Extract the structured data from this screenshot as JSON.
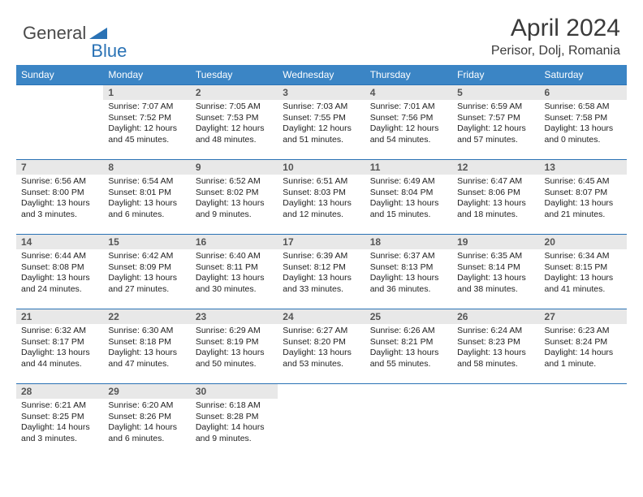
{
  "logo": {
    "text1": "General",
    "text2": "Blue"
  },
  "title": "April 2024",
  "location": "Perisor, Dolj, Romania",
  "colors": {
    "header_bg": "#3b85c5",
    "border": "#2a72b5",
    "day_num_bg": "#e8e8e8",
    "text": "#222222",
    "logo_gray": "#4a4a4a",
    "logo_blue": "#2a72b5"
  },
  "day_headers": [
    "Sunday",
    "Monday",
    "Tuesday",
    "Wednesday",
    "Thursday",
    "Friday",
    "Saturday"
  ],
  "weeks": [
    [
      {
        "num": "",
        "sunrise": "",
        "sunset": "",
        "daylight": ""
      },
      {
        "num": "1",
        "sunrise": "Sunrise: 7:07 AM",
        "sunset": "Sunset: 7:52 PM",
        "daylight": "Daylight: 12 hours and 45 minutes."
      },
      {
        "num": "2",
        "sunrise": "Sunrise: 7:05 AM",
        "sunset": "Sunset: 7:53 PM",
        "daylight": "Daylight: 12 hours and 48 minutes."
      },
      {
        "num": "3",
        "sunrise": "Sunrise: 7:03 AM",
        "sunset": "Sunset: 7:55 PM",
        "daylight": "Daylight: 12 hours and 51 minutes."
      },
      {
        "num": "4",
        "sunrise": "Sunrise: 7:01 AM",
        "sunset": "Sunset: 7:56 PM",
        "daylight": "Daylight: 12 hours and 54 minutes."
      },
      {
        "num": "5",
        "sunrise": "Sunrise: 6:59 AM",
        "sunset": "Sunset: 7:57 PM",
        "daylight": "Daylight: 12 hours and 57 minutes."
      },
      {
        "num": "6",
        "sunrise": "Sunrise: 6:58 AM",
        "sunset": "Sunset: 7:58 PM",
        "daylight": "Daylight: 13 hours and 0 minutes."
      }
    ],
    [
      {
        "num": "7",
        "sunrise": "Sunrise: 6:56 AM",
        "sunset": "Sunset: 8:00 PM",
        "daylight": "Daylight: 13 hours and 3 minutes."
      },
      {
        "num": "8",
        "sunrise": "Sunrise: 6:54 AM",
        "sunset": "Sunset: 8:01 PM",
        "daylight": "Daylight: 13 hours and 6 minutes."
      },
      {
        "num": "9",
        "sunrise": "Sunrise: 6:52 AM",
        "sunset": "Sunset: 8:02 PM",
        "daylight": "Daylight: 13 hours and 9 minutes."
      },
      {
        "num": "10",
        "sunrise": "Sunrise: 6:51 AM",
        "sunset": "Sunset: 8:03 PM",
        "daylight": "Daylight: 13 hours and 12 minutes."
      },
      {
        "num": "11",
        "sunrise": "Sunrise: 6:49 AM",
        "sunset": "Sunset: 8:04 PM",
        "daylight": "Daylight: 13 hours and 15 minutes."
      },
      {
        "num": "12",
        "sunrise": "Sunrise: 6:47 AM",
        "sunset": "Sunset: 8:06 PM",
        "daylight": "Daylight: 13 hours and 18 minutes."
      },
      {
        "num": "13",
        "sunrise": "Sunrise: 6:45 AM",
        "sunset": "Sunset: 8:07 PM",
        "daylight": "Daylight: 13 hours and 21 minutes."
      }
    ],
    [
      {
        "num": "14",
        "sunrise": "Sunrise: 6:44 AM",
        "sunset": "Sunset: 8:08 PM",
        "daylight": "Daylight: 13 hours and 24 minutes."
      },
      {
        "num": "15",
        "sunrise": "Sunrise: 6:42 AM",
        "sunset": "Sunset: 8:09 PM",
        "daylight": "Daylight: 13 hours and 27 minutes."
      },
      {
        "num": "16",
        "sunrise": "Sunrise: 6:40 AM",
        "sunset": "Sunset: 8:11 PM",
        "daylight": "Daylight: 13 hours and 30 minutes."
      },
      {
        "num": "17",
        "sunrise": "Sunrise: 6:39 AM",
        "sunset": "Sunset: 8:12 PM",
        "daylight": "Daylight: 13 hours and 33 minutes."
      },
      {
        "num": "18",
        "sunrise": "Sunrise: 6:37 AM",
        "sunset": "Sunset: 8:13 PM",
        "daylight": "Daylight: 13 hours and 36 minutes."
      },
      {
        "num": "19",
        "sunrise": "Sunrise: 6:35 AM",
        "sunset": "Sunset: 8:14 PM",
        "daylight": "Daylight: 13 hours and 38 minutes."
      },
      {
        "num": "20",
        "sunrise": "Sunrise: 6:34 AM",
        "sunset": "Sunset: 8:15 PM",
        "daylight": "Daylight: 13 hours and 41 minutes."
      }
    ],
    [
      {
        "num": "21",
        "sunrise": "Sunrise: 6:32 AM",
        "sunset": "Sunset: 8:17 PM",
        "daylight": "Daylight: 13 hours and 44 minutes."
      },
      {
        "num": "22",
        "sunrise": "Sunrise: 6:30 AM",
        "sunset": "Sunset: 8:18 PM",
        "daylight": "Daylight: 13 hours and 47 minutes."
      },
      {
        "num": "23",
        "sunrise": "Sunrise: 6:29 AM",
        "sunset": "Sunset: 8:19 PM",
        "daylight": "Daylight: 13 hours and 50 minutes."
      },
      {
        "num": "24",
        "sunrise": "Sunrise: 6:27 AM",
        "sunset": "Sunset: 8:20 PM",
        "daylight": "Daylight: 13 hours and 53 minutes."
      },
      {
        "num": "25",
        "sunrise": "Sunrise: 6:26 AM",
        "sunset": "Sunset: 8:21 PM",
        "daylight": "Daylight: 13 hours and 55 minutes."
      },
      {
        "num": "26",
        "sunrise": "Sunrise: 6:24 AM",
        "sunset": "Sunset: 8:23 PM",
        "daylight": "Daylight: 13 hours and 58 minutes."
      },
      {
        "num": "27",
        "sunrise": "Sunrise: 6:23 AM",
        "sunset": "Sunset: 8:24 PM",
        "daylight": "Daylight: 14 hours and 1 minute."
      }
    ],
    [
      {
        "num": "28",
        "sunrise": "Sunrise: 6:21 AM",
        "sunset": "Sunset: 8:25 PM",
        "daylight": "Daylight: 14 hours and 3 minutes."
      },
      {
        "num": "29",
        "sunrise": "Sunrise: 6:20 AM",
        "sunset": "Sunset: 8:26 PM",
        "daylight": "Daylight: 14 hours and 6 minutes."
      },
      {
        "num": "30",
        "sunrise": "Sunrise: 6:18 AM",
        "sunset": "Sunset: 8:28 PM",
        "daylight": "Daylight: 14 hours and 9 minutes."
      },
      {
        "num": "",
        "sunrise": "",
        "sunset": "",
        "daylight": ""
      },
      {
        "num": "",
        "sunrise": "",
        "sunset": "",
        "daylight": ""
      },
      {
        "num": "",
        "sunrise": "",
        "sunset": "",
        "daylight": ""
      },
      {
        "num": "",
        "sunrise": "",
        "sunset": "",
        "daylight": ""
      }
    ]
  ]
}
